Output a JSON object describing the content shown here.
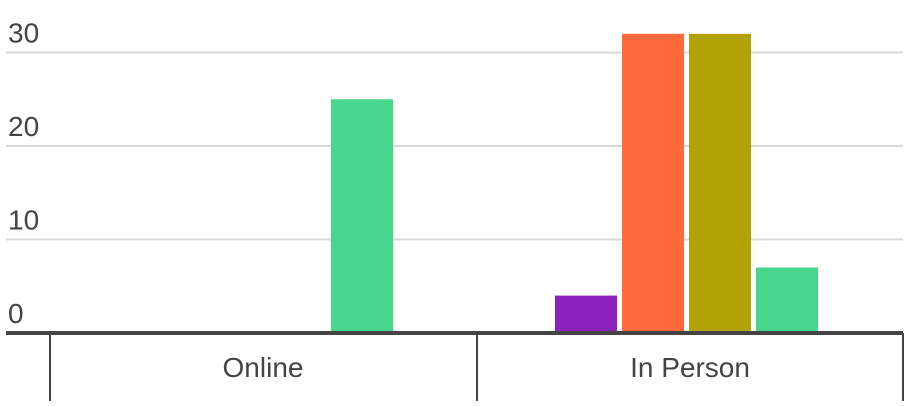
{
  "chart_data": {
    "type": "bar",
    "categories": [
      "Online",
      "In Person"
    ],
    "series": [
      {
        "color": "#8b22bb",
        "values": [
          0,
          4
        ]
      },
      {
        "color": "#ff6a3d",
        "values": [
          0,
          32
        ]
      },
      {
        "color": "#b2a206",
        "values": [
          0,
          32
        ]
      },
      {
        "color": "#48d68c",
        "values": [
          25,
          7
        ]
      }
    ],
    "ylim": [
      0,
      30
    ],
    "yticks": [
      "0",
      "10",
      "20",
      "30"
    ],
    "grid": true,
    "legend": "none"
  }
}
